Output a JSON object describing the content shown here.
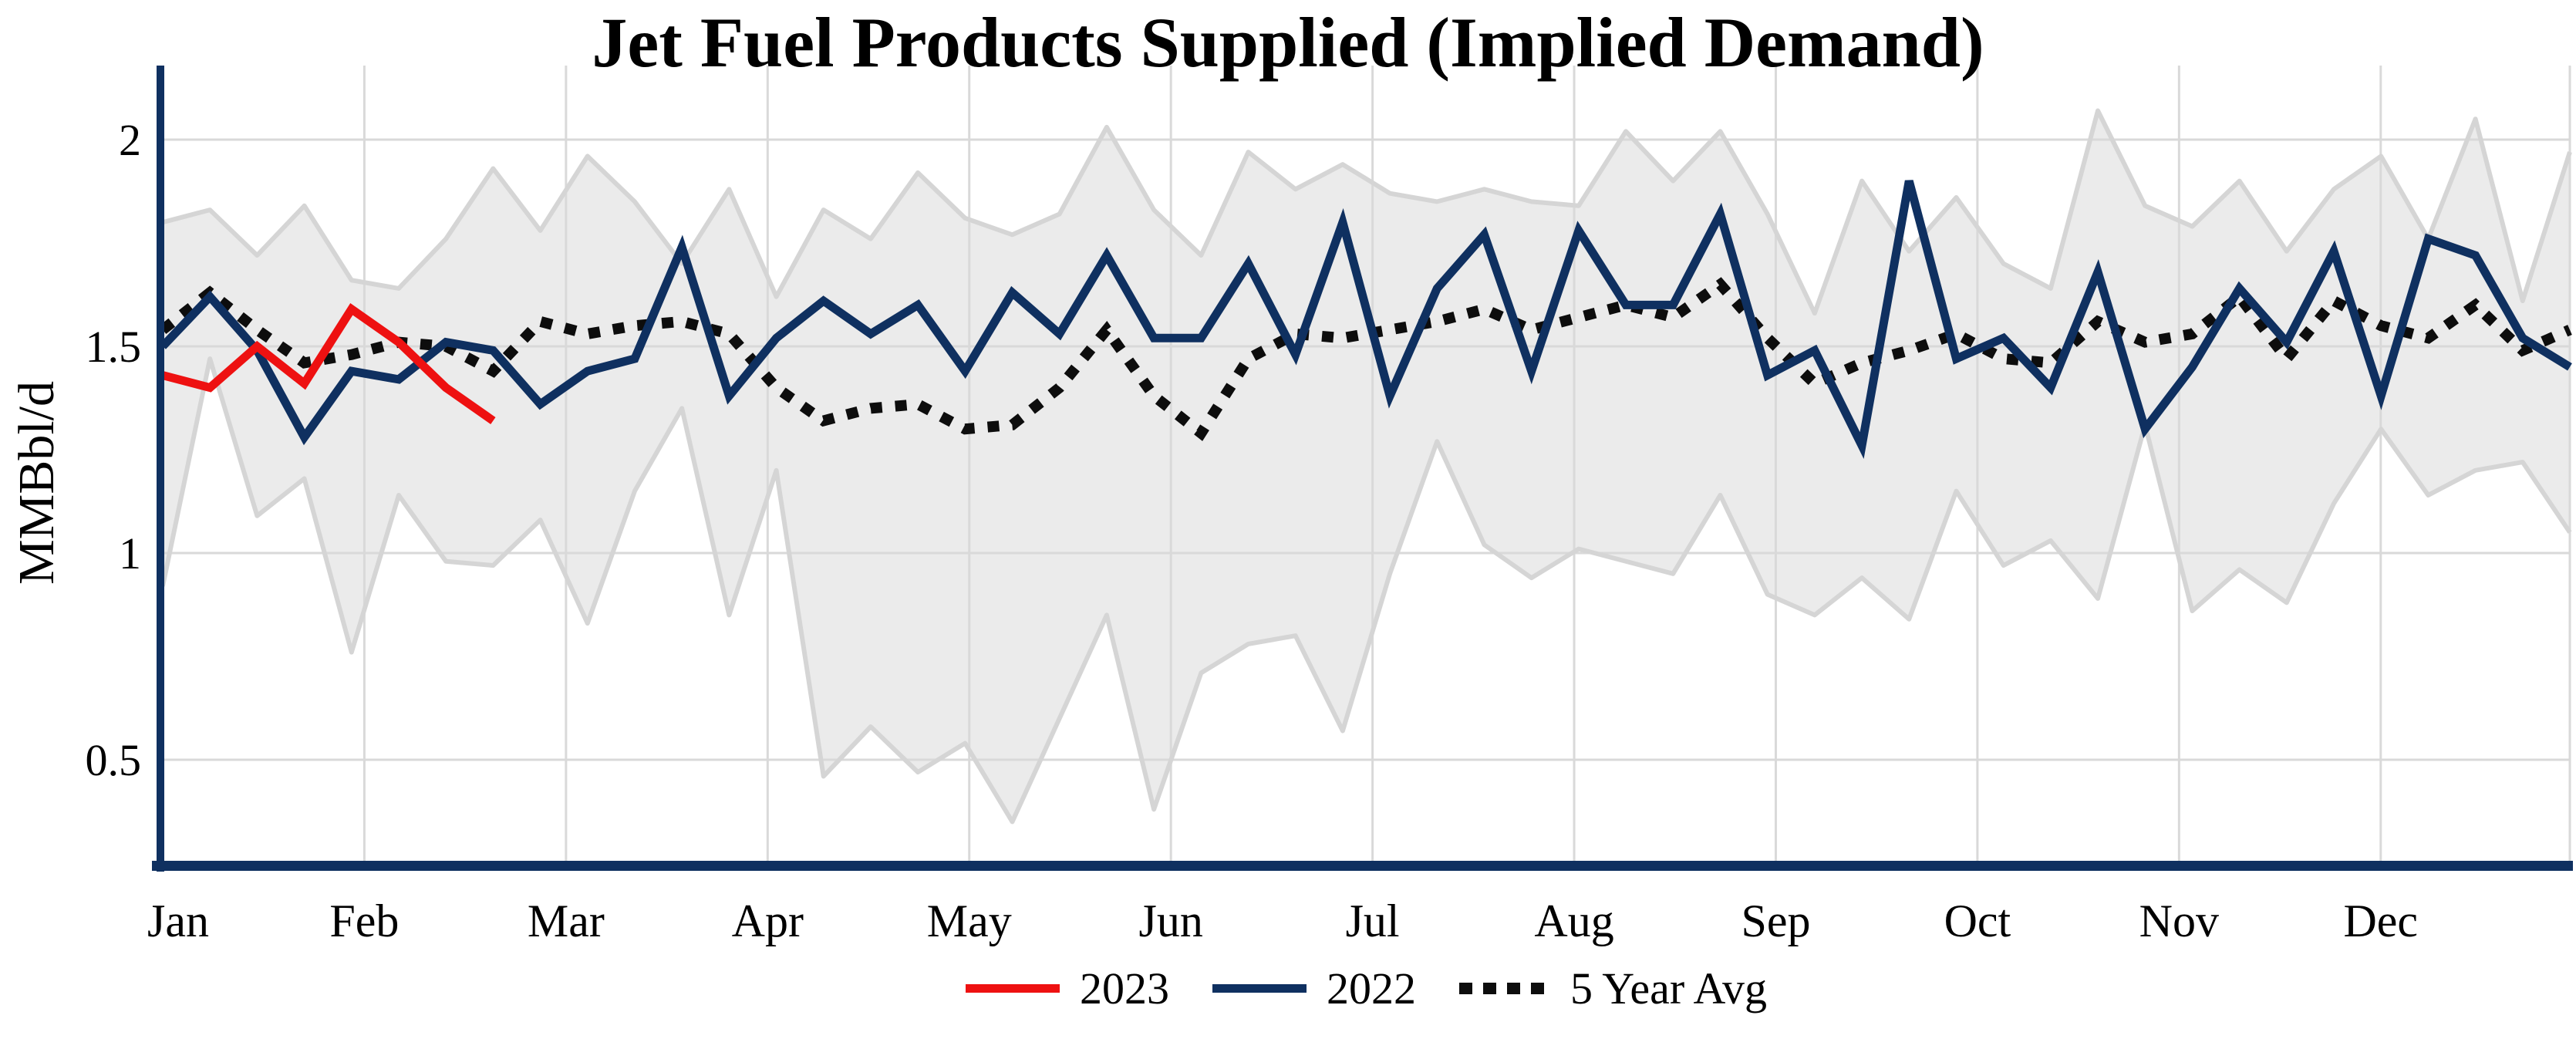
{
  "page": {
    "title": "Jet Fuel Products Supplied (Implied Demand)"
  },
  "colors": {
    "axis": "#0f3060",
    "gridline": "#d9d9d9",
    "background": "#ffffff",
    "band_fill": "#ebebeb",
    "band_edge": "#d5d5d5",
    "series_2023": "#ee1111",
    "series_2022": "#0f3060",
    "series_5yr": "#0d0d0d"
  },
  "chart_data": {
    "type": "line",
    "title": "Jet Fuel Products Supplied (Implied Demand)",
    "ylabel": "MMBbl/d",
    "xlabel": "",
    "x_axis": {
      "tick_labels": [
        "Jan",
        "Feb",
        "Mar",
        "Apr",
        "May",
        "Jun",
        "Jul",
        "Aug",
        "Sep",
        "Oct",
        "Nov",
        "Dec"
      ],
      "unit": "weekly points, Jan through Dec"
    },
    "y_axis": {
      "tick_labels": [
        "2",
        "1.5",
        "1",
        "0.5"
      ],
      "tick_values": [
        2,
        1.5,
        1,
        0.5
      ],
      "ylim": [
        0.25,
        2.18
      ],
      "grid": true
    },
    "legend": {
      "position": "bottom-center",
      "entries": [
        "2023",
        "2022",
        "5 Year Avg"
      ]
    },
    "series": [
      {
        "name": "2023",
        "style": "solid",
        "values": [
          1.43,
          1.4,
          1.5,
          1.41,
          1.59,
          1.51,
          1.4,
          1.32
        ]
      },
      {
        "name": "2022",
        "style": "solid",
        "values": [
          1.5,
          1.62,
          1.49,
          1.28,
          1.44,
          1.42,
          1.51,
          1.49,
          1.36,
          1.44,
          1.47,
          1.74,
          1.38,
          1.52,
          1.61,
          1.53,
          1.6,
          1.44,
          1.63,
          1.53,
          1.72,
          1.52,
          1.52,
          1.7,
          1.48,
          1.8,
          1.38,
          1.64,
          1.77,
          1.44,
          1.78,
          1.6,
          1.6,
          1.82,
          1.43,
          1.49,
          1.26,
          1.9,
          1.47,
          1.52,
          1.4,
          1.68,
          1.3,
          1.45,
          1.64,
          1.51,
          1.73,
          1.38,
          1.76,
          1.72,
          1.52,
          1.45
        ]
      },
      {
        "name": "5 Year Avg",
        "style": "dotted",
        "values": [
          1.54,
          1.63,
          1.54,
          1.46,
          1.48,
          1.51,
          1.5,
          1.44,
          1.56,
          1.53,
          1.55,
          1.56,
          1.53,
          1.4,
          1.32,
          1.35,
          1.36,
          1.3,
          1.31,
          1.4,
          1.54,
          1.38,
          1.29,
          1.47,
          1.53,
          1.52,
          1.54,
          1.56,
          1.59,
          1.54,
          1.57,
          1.6,
          1.57,
          1.65,
          1.52,
          1.41,
          1.46,
          1.49,
          1.53,
          1.47,
          1.46,
          1.56,
          1.51,
          1.53,
          1.62,
          1.47,
          1.61,
          1.55,
          1.52,
          1.6,
          1.49,
          1.54
        ]
      }
    ],
    "band": {
      "description": "5-year min/max range shading",
      "upper": [
        1.8,
        1.83,
        1.72,
        1.84,
        1.66,
        1.64,
        1.76,
        1.93,
        1.78,
        1.96,
        1.85,
        1.7,
        1.88,
        1.62,
        1.83,
        1.76,
        1.92,
        1.81,
        1.77,
        1.82,
        2.03,
        1.83,
        1.72,
        1.97,
        1.88,
        1.94,
        1.87,
        1.85,
        1.88,
        1.85,
        1.84,
        2.02,
        1.9,
        2.02,
        1.82,
        1.58,
        1.9,
        1.73,
        1.86,
        1.7,
        1.64,
        2.07,
        1.84,
        1.79,
        1.9,
        1.73,
        1.88,
        1.96,
        1.76,
        2.05,
        1.61,
        1.97
      ],
      "lower": [
        0.92,
        1.47,
        1.09,
        1.18,
        0.76,
        1.14,
        0.98,
        0.97,
        1.08,
        0.83,
        1.15,
        1.35,
        0.85,
        1.2,
        0.46,
        0.58,
        0.47,
        0.54,
        0.35,
        0.6,
        0.85,
        0.38,
        0.71,
        0.78,
        0.8,
        0.57,
        0.95,
        1.27,
        1.02,
        0.94,
        1.01,
        0.98,
        0.95,
        1.14,
        0.9,
        0.85,
        0.94,
        0.84,
        1.15,
        0.97,
        1.03,
        0.89,
        1.31,
        0.86,
        0.96,
        0.88,
        1.12,
        1.3,
        1.14,
        1.2,
        1.22,
        1.05
      ]
    }
  }
}
